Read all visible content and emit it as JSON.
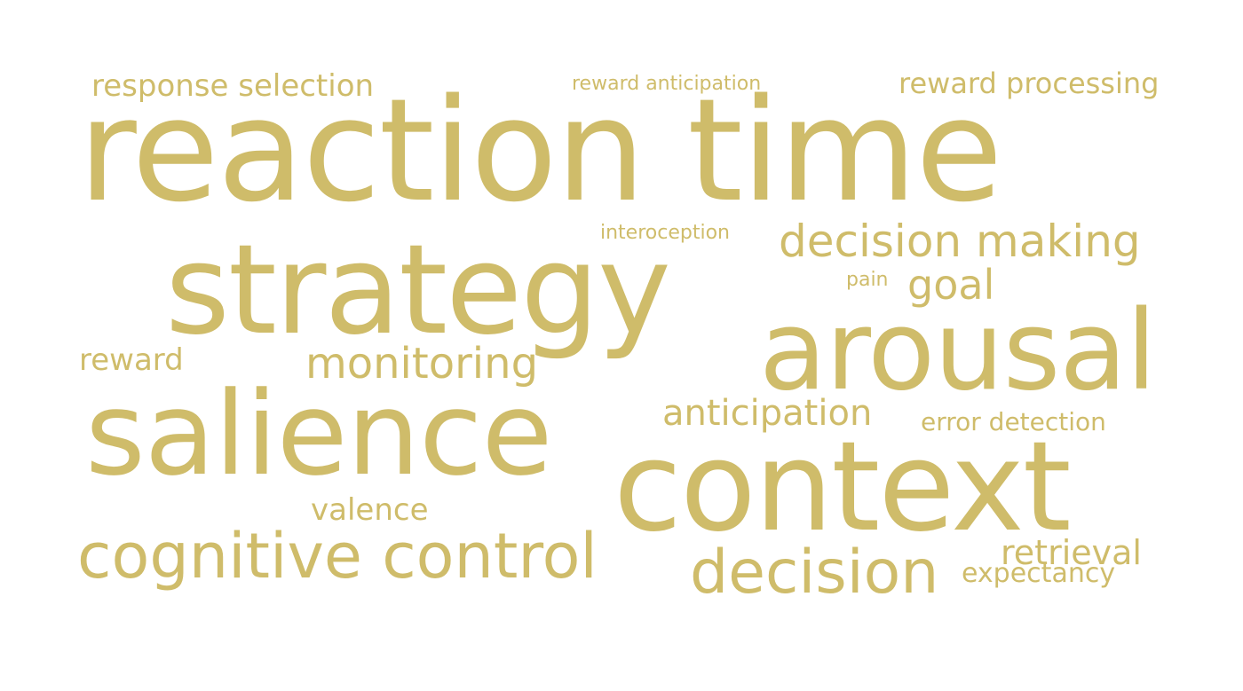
{
  "word_cloud": {
    "color": "#cfbc6a",
    "words": [
      {
        "text": "response selection"
      },
      {
        "text": "reward anticipation"
      },
      {
        "text": "reward processing"
      },
      {
        "text": "reaction time"
      },
      {
        "text": "interoception"
      },
      {
        "text": "decision making"
      },
      {
        "text": "strategy"
      },
      {
        "text": "pain"
      },
      {
        "text": "goal"
      },
      {
        "text": "arousal"
      },
      {
        "text": "reward"
      },
      {
        "text": "monitoring"
      },
      {
        "text": "anticipation"
      },
      {
        "text": "error detection"
      },
      {
        "text": "salience"
      },
      {
        "text": "context"
      },
      {
        "text": "valence"
      },
      {
        "text": "cognitive control"
      },
      {
        "text": "retrieval"
      },
      {
        "text": "decision"
      },
      {
        "text": "expectancy"
      }
    ]
  }
}
